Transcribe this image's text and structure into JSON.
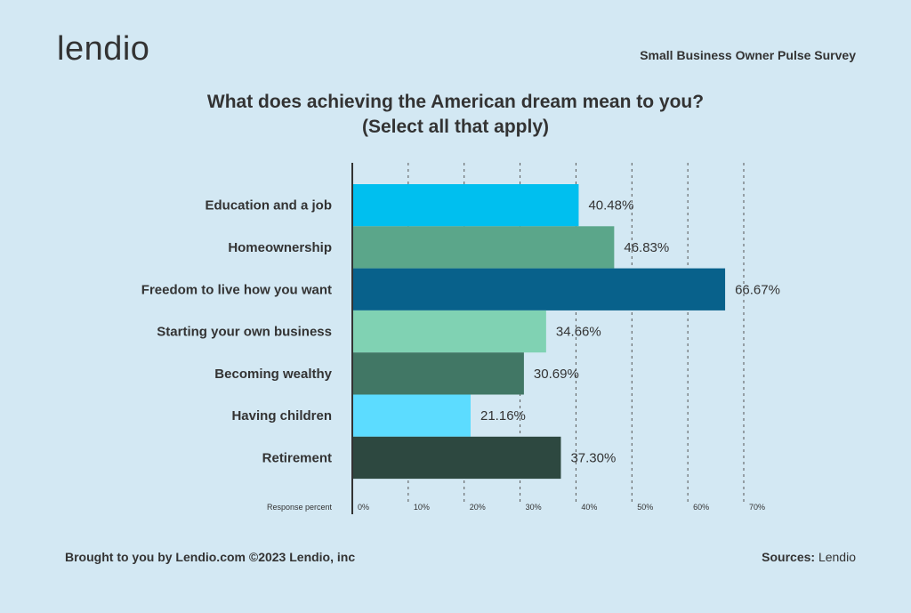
{
  "brand": {
    "logo_text": "lendio"
  },
  "header": {
    "survey_name": "Small Business Owner Pulse Survey"
  },
  "chart_data": {
    "type": "bar",
    "orientation": "horizontal",
    "title": "What does achieving the American dream mean to you?",
    "subtitle": "(Select all that apply)",
    "categories": [
      "Education and a job",
      "Homeownership",
      "Freedom to live how you want",
      "Starting your own business",
      "Becoming wealthy",
      "Having children",
      "Retirement"
    ],
    "values": [
      40.48,
      46.83,
      66.67,
      34.66,
      30.69,
      21.16,
      37.3
    ],
    "value_labels": [
      "40.48%",
      "46.83%",
      "66.67%",
      "34.66%",
      "30.69%",
      "21.16%",
      "37.30%"
    ],
    "colors": [
      "#00bfef",
      "#5ba68a",
      "#08618b",
      "#80d2b3",
      "#417765",
      "#5cdcff",
      "#2d4840"
    ],
    "xlabel": "Response percent",
    "xlim": [
      0,
      70
    ],
    "ticks": [
      0,
      10,
      20,
      30,
      40,
      50,
      60,
      70
    ],
    "tick_labels": [
      "0%",
      "10%",
      "20%",
      "30%",
      "40%",
      "50%",
      "60%",
      "70%"
    ],
    "grid": "vertical dashed",
    "legend": "none"
  },
  "footer": {
    "credit": "Brought to you by Lendio.com ©2023 Lendio, inc",
    "sources_label": "Sources:",
    "sources_value": " Lendio"
  }
}
